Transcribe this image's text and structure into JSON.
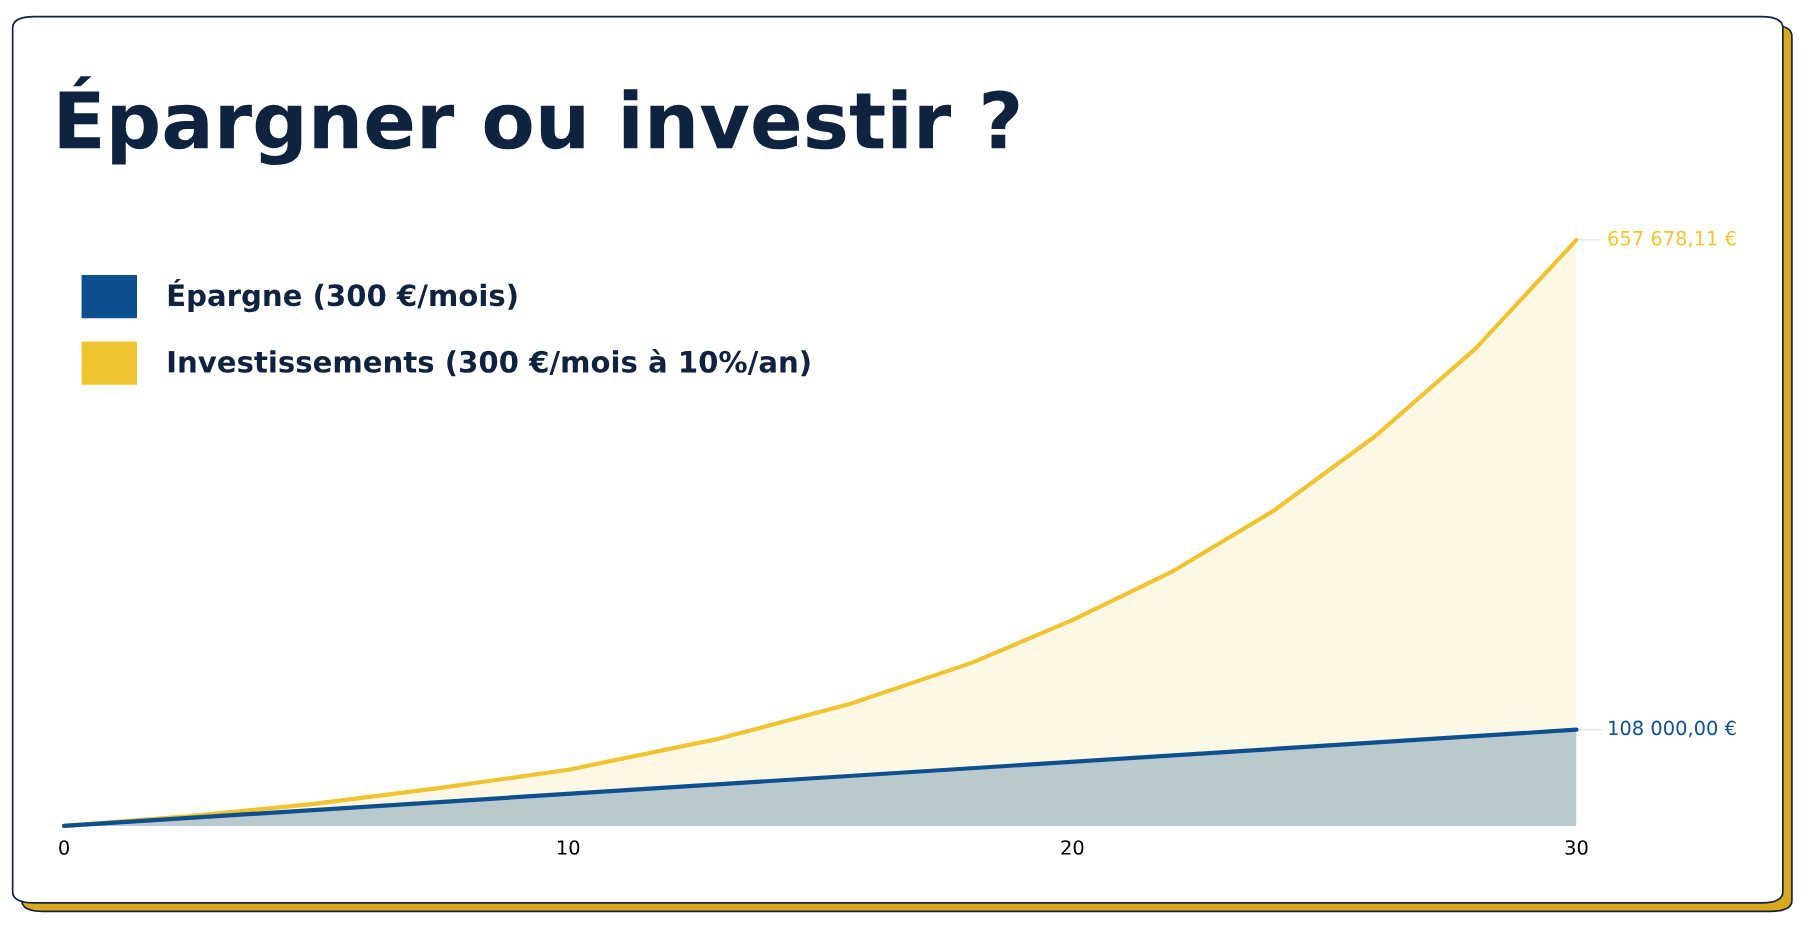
{
  "chart_data": {
    "type": "area",
    "title": "Épargner ou investir ?",
    "xlim": [
      0,
      30
    ],
    "xticks": [
      0,
      10,
      20,
      30
    ],
    "series": [
      {
        "name": "Investissements (300 €/mois à 10%/an)",
        "color": "#f0c330",
        "x": [
          0,
          2.5,
          5,
          7.5,
          10,
          13,
          15.6,
          18,
          20,
          22,
          24,
          26,
          28,
          30
        ],
        "values": [
          0,
          11000,
          25000,
          43000,
          63000,
          98000,
          137000,
          183000,
          231000,
          286000,
          354000,
          437000,
          536000,
          657678.11
        ],
        "value_labels": [
          null,
          null,
          null,
          null,
          null,
          null,
          null,
          null,
          null,
          null,
          null,
          null,
          null,
          "657 678,11 €"
        ]
      },
      {
        "name": "Épargne (300 €/mois)",
        "color": "#0d4f8f",
        "x": [
          0,
          30
        ],
        "values": [
          0,
          108000
        ],
        "value_labels": [
          null,
          "108 000,00 €"
        ]
      }
    ],
    "legend": "top left",
    "grid": false,
    "tick_labels": "x"
  }
}
